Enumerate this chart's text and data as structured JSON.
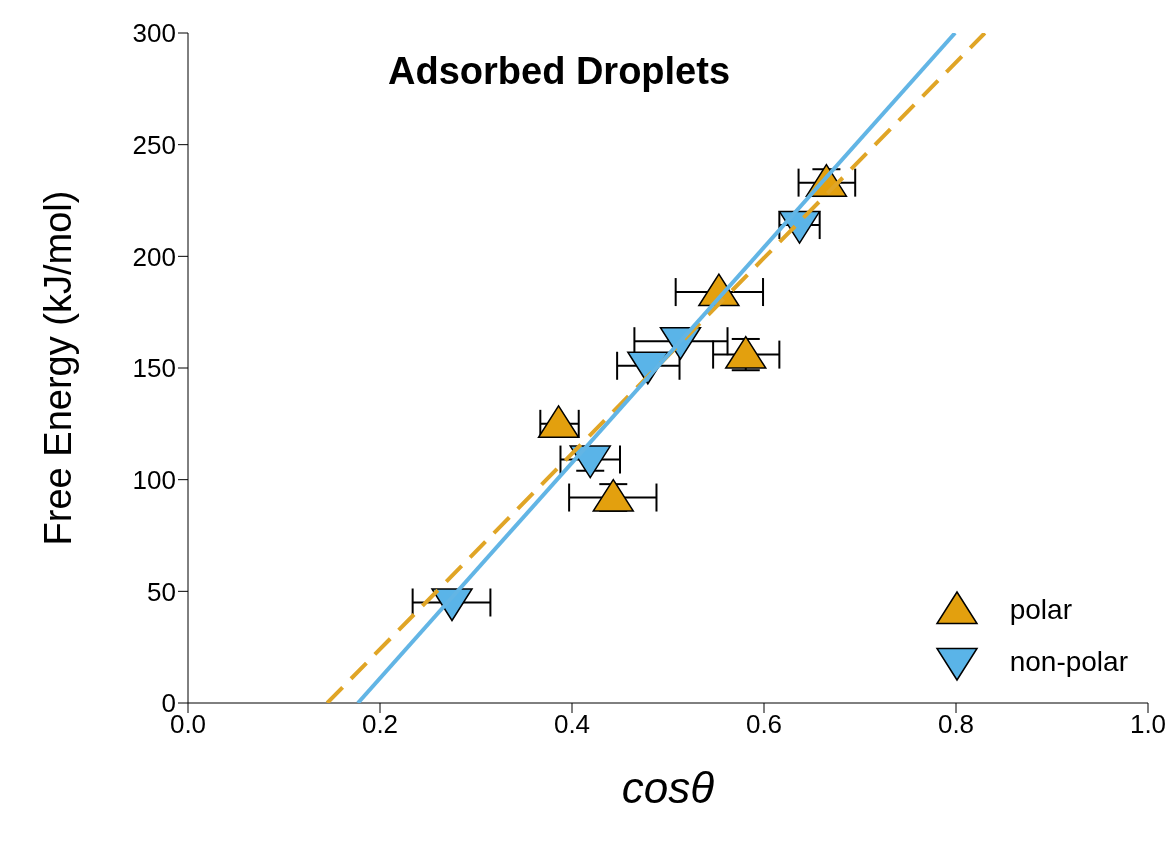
{
  "chart_data": {
    "type": "scatter",
    "title": "Adsorbed Droplets",
    "xlabel": "cosθ",
    "ylabel": "Free Energy (kJ/mol)",
    "xlim": [
      0,
      1
    ],
    "xticks": [
      {
        "value": 0,
        "label": "0.0"
      },
      {
        "value": 0.2,
        "label": "0.2"
      },
      {
        "value": 0.4,
        "label": "0.4"
      },
      {
        "value": 0.6,
        "label": "0.6"
      },
      {
        "value": 0.8,
        "label": "0.8"
      },
      {
        "value": 1,
        "label": "1.0"
      }
    ],
    "ylim": [
      0,
      300
    ],
    "yticks": [
      0,
      50,
      100,
      150,
      200,
      250,
      300
    ],
    "grid": false,
    "legend": "bottom right",
    "series": [
      {
        "name": "polar",
        "type": "scatter",
        "marker": "triangle",
        "color": "#e3a00e",
        "x": [
          0.665,
          0.553,
          0.581,
          0.386,
          0.443
        ],
        "values": [
          233,
          184,
          156,
          125,
          92
        ],
        "errors": [
          6,
          null,
          7,
          null,
          6
        ],
        "xerrors": [
          [
            0.636,
            0.695
          ],
          [
            0.508,
            0.599
          ],
          [
            0.547,
            0.616
          ],
          [
            0.367,
            0.407
          ],
          [
            0.397,
            0.488
          ]
        ]
      },
      {
        "name": "non-polar",
        "type": "scatter",
        "marker": "triangle-down",
        "color": "#5ab4e8",
        "x": [
          0.637,
          0.513,
          0.479,
          0.419,
          0.275
        ],
        "values": [
          214,
          162,
          151,
          109,
          45
        ],
        "errors": [
          null,
          null,
          null,
          5,
          null
        ],
        "xerrors": [
          [
            0.616,
            0.658
          ],
          [
            0.465,
            0.562
          ],
          [
            0.447,
            0.512
          ],
          [
            0.388,
            0.45
          ],
          [
            0.234,
            0.315
          ]
        ]
      },
      {
        "type": "line",
        "line_style": "dashed",
        "color": "#e0a526",
        "x": [
          0.145,
          0.83
        ],
        "values": [
          0,
          300
        ]
      },
      {
        "type": "line",
        "line_style": "solid",
        "color": "#62b5e5",
        "x": [
          0.177,
          0.799
        ],
        "values": [
          0,
          300
        ]
      }
    ]
  }
}
